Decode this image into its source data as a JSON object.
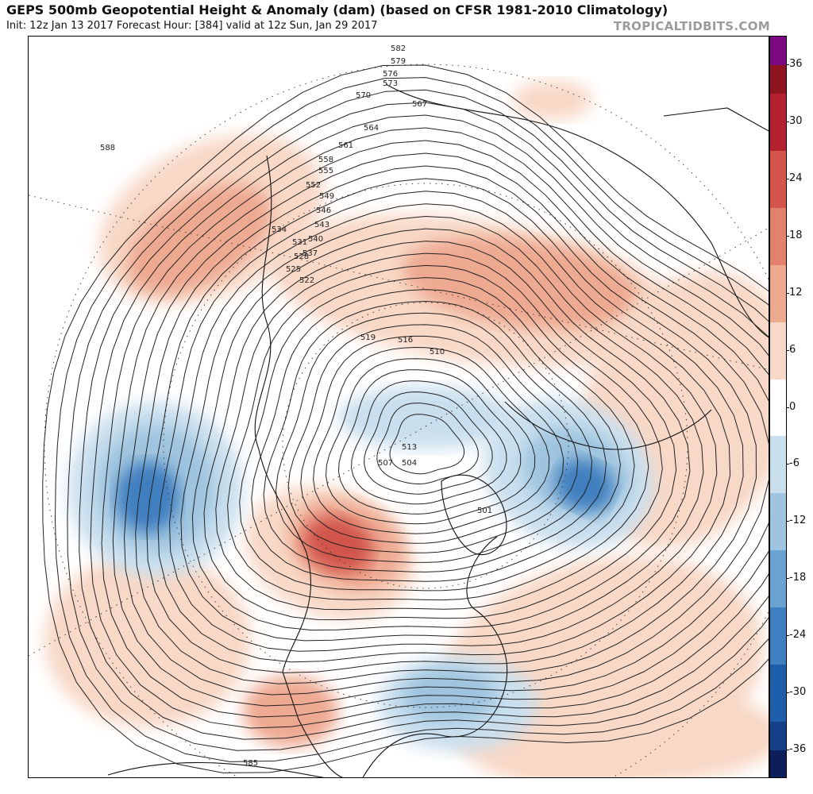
{
  "header": {
    "title": "GEPS 500mb Geopotential Height & Anomaly (dam) (based on CFSR 1981-2010 Climatology)",
    "subtitle": "Init: 12z Jan 13 2017   Forecast Hour: [384]   valid at 12z Sun, Jan 29 2017",
    "brand": "TROPICALTIDBITS.COM"
  },
  "colorbar": {
    "units": "dam",
    "tick_labels": [
      "36",
      "30",
      "24",
      "18",
      "12",
      "6",
      "0",
      "-6",
      "-12",
      "-18",
      "-24",
      "-30",
      "-36"
    ],
    "bins": [
      {
        "value": 39,
        "color": "#7b0a82"
      },
      {
        "value": 33,
        "color": "#8e1420"
      },
      {
        "value": 27,
        "color": "#b4212e"
      },
      {
        "value": 21,
        "color": "#d2544b"
      },
      {
        "value": 15,
        "color": "#e2816c"
      },
      {
        "value": 9,
        "color": "#eea991"
      },
      {
        "value": 3,
        "color": "#f8d8c6"
      },
      {
        "value": 0,
        "color": "#ffffff"
      },
      {
        "value": -3,
        "color": "#c9dfee"
      },
      {
        "value": -9,
        "color": "#9fc4df"
      },
      {
        "value": -15,
        "color": "#6aa3cf"
      },
      {
        "value": -21,
        "color": "#3f7fbf"
      },
      {
        "value": -27,
        "color": "#1f5ea9"
      },
      {
        "value": -33,
        "color": "#153f86"
      },
      {
        "value": -39,
        "color": "#0c1f5a"
      }
    ]
  },
  "map": {
    "projection": "north-polar-stereographic",
    "contour_interval_dam": 3,
    "contour_labels": [
      "582",
      "579",
      "576",
      "573",
      "570",
      "567",
      "564",
      "561",
      "558",
      "555",
      "552",
      "549",
      "546",
      "543",
      "540",
      "537",
      "534",
      "531",
      "528",
      "525",
      "522",
      "519",
      "516",
      "513",
      "510",
      "507",
      "504",
      "501",
      "588",
      "585"
    ],
    "anomaly_colors": {
      "positive_light": "#f8d8c6",
      "positive_mid": "#eea991",
      "positive_strong": "#d2544b",
      "negative_light": "#c9dfee",
      "negative_mid": "#9fc4df",
      "negative_strong": "#3f7fbf"
    }
  }
}
